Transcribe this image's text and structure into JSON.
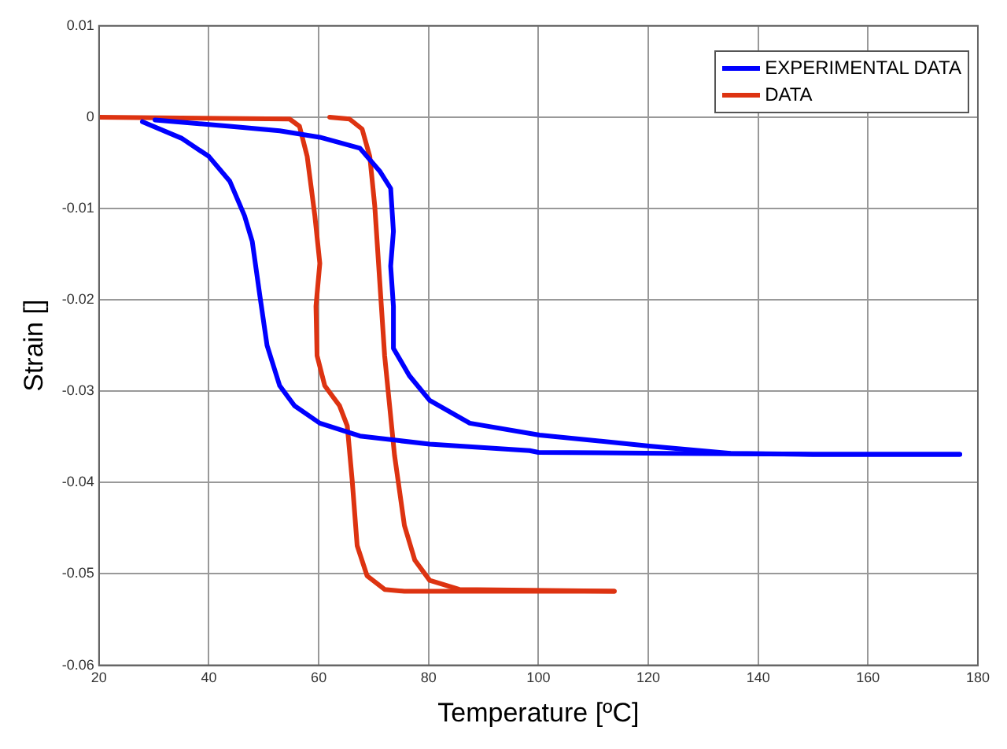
{
  "chart_data": {
    "type": "line",
    "xlabel": "Temperature [ºC]",
    "ylabel": "Strain []",
    "xlim": [
      20,
      180
    ],
    "xticks": [
      20,
      40,
      60,
      80,
      100,
      120,
      140,
      160,
      180
    ],
    "ylim": [
      -0.06,
      0.01
    ],
    "yticks": [
      -0.06,
      -0.05,
      -0.04,
      -0.03,
      -0.02,
      -0.01,
      0,
      0.01
    ],
    "grid": true,
    "legend": "top right",
    "marker": "none",
    "line_style": "solid",
    "series": [
      {
        "name": "EXPERIMENTAL DATA",
        "color": "#0000ff",
        "x": [
          27.9,
          35,
          40,
          43.8,
          46.5,
          47.9,
          49.3,
          50.6,
          52.9,
          55.6,
          60.2,
          67.5,
          80.2,
          98.4,
          100,
          123.8,
          150,
          176.7
        ],
        "values": [
          -0.0005,
          -0.0023,
          -0.0043,
          -0.007,
          -0.0108,
          -0.0136,
          -0.0196,
          -0.025,
          -0.0294,
          -0.0316,
          -0.0335,
          -0.0349,
          -0.0358,
          -0.0365,
          -0.0367,
          -0.0368,
          -0.0369,
          -0.0369
        ]
      },
      {
        "color": "#0000ff",
        "x": [
          176.7,
          150,
          135,
          120.2,
          100.2,
          87.5,
          80.2,
          76.5,
          73.6,
          73.6,
          73.1,
          73.6,
          73.1,
          71.1,
          67.5,
          60.2,
          52.9,
          43.8,
          30.2
        ],
        "values": [
          -0.0369,
          -0.0369,
          -0.0368,
          -0.036,
          -0.0348,
          -0.0335,
          -0.031,
          -0.0283,
          -0.0253,
          -0.0207,
          -0.0163,
          -0.0125,
          -0.0078,
          -0.0059,
          -0.0034,
          -0.0022,
          -0.0015,
          -0.001,
          -0.0003
        ]
      },
      {
        "name": "DATA",
        "color": "#dd3311",
        "x": [
          20,
          54.7,
          56.5,
          57.9,
          59.3,
          60.2,
          59.5,
          59.7,
          61.1,
          63.8,
          65.2,
          66.1,
          67,
          68.8,
          72,
          75.6,
          113.8
        ],
        "values": [
          0,
          -0.0002,
          -0.001,
          -0.0043,
          -0.0108,
          -0.016,
          -0.0207,
          -0.0261,
          -0.0294,
          -0.0316,
          -0.0338,
          -0.0398,
          -0.0469,
          -0.0502,
          -0.0517,
          -0.0519,
          -0.0519
        ]
      },
      {
        "color": "#dd3311",
        "x": [
          113.8,
          85.6,
          80.2,
          77.5,
          75.6,
          73.8,
          72,
          71.1,
          70.2,
          69.3,
          67.9,
          65.6,
          62
        ],
        "values": [
          -0.0519,
          -0.0517,
          -0.0507,
          -0.0485,
          -0.0447,
          -0.037,
          -0.0261,
          -0.0179,
          -0.0097,
          -0.0043,
          -0.0013,
          -0.0002,
          0
        ]
      }
    ]
  }
}
